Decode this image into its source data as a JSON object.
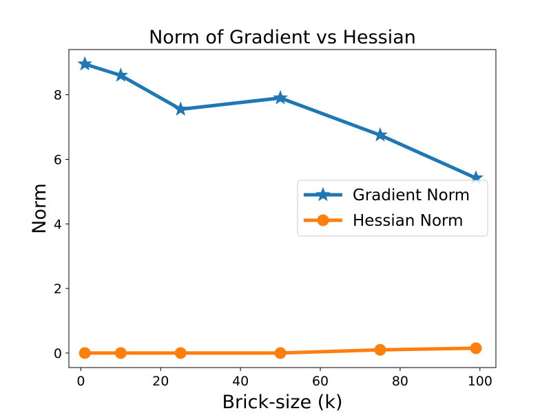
{
  "chart_data": {
    "type": "line",
    "title": "Norm of Gradient vs Hessian",
    "xlabel": "Brick-size (k)",
    "ylabel": "Norm",
    "xlim": [
      -3,
      104
    ],
    "ylim": [
      -0.45,
      9.4
    ],
    "xticks": [
      0,
      20,
      40,
      60,
      80,
      100
    ],
    "yticks": [
      0,
      2,
      4,
      6,
      8
    ],
    "grid": false,
    "legend_position": "center-right",
    "x": [
      1,
      10,
      25,
      50,
      75,
      99
    ],
    "series": [
      {
        "name": "Gradient Norm",
        "color": "#1f77b4",
        "marker": "star",
        "values": [
          8.95,
          8.6,
          7.55,
          7.9,
          6.75,
          5.42
        ]
      },
      {
        "name": "Hessian Norm",
        "color": "#ff7f0e",
        "marker": "circle",
        "values": [
          0.0,
          0.0,
          0.0,
          0.0,
          0.1,
          0.15
        ]
      }
    ]
  }
}
